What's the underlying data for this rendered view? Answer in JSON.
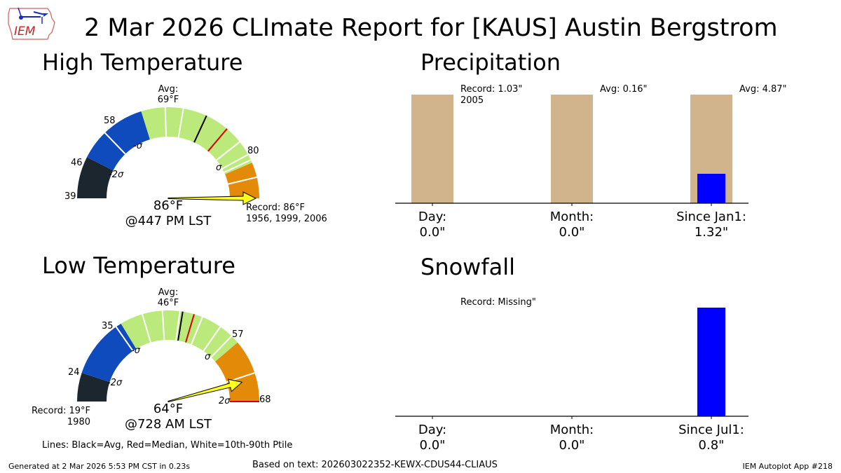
{
  "header": {
    "title": "2 Mar 2026 CLImate Report for [KAUS] Austin Bergstrom",
    "logo_text": "IEM"
  },
  "panels": {
    "high": {
      "title": "High Temperature"
    },
    "low": {
      "title": "Low Temperature"
    },
    "precip": {
      "title": "Precipitation"
    },
    "snow": {
      "title": "Snowfall"
    }
  },
  "legend_note": "Lines: Black=Avg, Red=Median, White=10th-90th Ptile",
  "footer": {
    "generated": "Generated at 2 Mar 2026 5:53 PM CST in 0.23s",
    "based_on": "Based on text: 202603022352-KEWX-CDUS44-CLIAUS",
    "app": "IEM Autoplot App #218"
  },
  "colors": {
    "below_2sigma": "#1c262e",
    "below_sigma": "#0f4bbd",
    "normal": "#bbe97c",
    "above_sigma": "#e48a09",
    "arrow": "#ffff1a",
    "precip_avg_bar": "#d2b48c",
    "observed_bar": "#0000ff",
    "avg_line": "#000000",
    "median_line": "#d40000",
    "ptile_line": "#ffffff"
  },
  "chart_data": [
    {
      "type": "gauge",
      "title": "High Temperature",
      "min": 39,
      "max": 86,
      "tick_labels": [
        "39",
        "46",
        "58",
        "80"
      ],
      "band_edges": [
        39,
        46,
        58,
        80,
        86
      ],
      "band_labels": [
        "-2σ",
        "-σ",
        "σ"
      ],
      "avg": 69,
      "avg_label": [
        "Avg:",
        "69°F"
      ],
      "median": 73,
      "ptile_lines": [
        51,
        62,
        65,
        76,
        78.5,
        79.5,
        82.5
      ],
      "observed": 86,
      "observed_label": "86°F",
      "observed_time": "@447 PM LST",
      "record_label": [
        "Record: 86°F",
        "1956, 1999, 2006"
      ]
    },
    {
      "type": "gauge",
      "title": "Low Temperature",
      "min": 19,
      "max": 68,
      "tick_labels": [
        "24",
        "35",
        "57",
        "68"
      ],
      "band_edges": [
        19,
        24,
        35,
        57,
        68
      ],
      "band_labels": [
        "-2σ",
        "-σ",
        "σ",
        "2σ"
      ],
      "avg": 46,
      "avg_label": [
        "Avg:",
        "46°F"
      ],
      "median": 48,
      "ptile_lines": [
        34,
        39,
        42.5,
        45.5,
        49.5,
        53,
        55.5,
        63
      ],
      "observed": 64,
      "observed_label": "64°F",
      "observed_time": "@728 AM LST",
      "record_label": [
        "Record: 19°F",
        "1980"
      ]
    },
    {
      "type": "bar",
      "title": "Precipitation",
      "categories": [
        "Day:",
        "Month:",
        "Since Jan1:"
      ],
      "category_values": [
        "0.0\"",
        "0.0\"",
        "1.32\""
      ],
      "series": [
        {
          "name": "Reference (record/avg, normalized)",
          "values": [
            1.0,
            1.0,
            1.0
          ]
        },
        {
          "name": "Observed (fraction of reference)",
          "values": [
            0.0,
            0.0,
            0.271
          ]
        }
      ],
      "annotations": [
        [
          "Record: 1.03\"",
          "2005"
        ],
        [
          "Avg: 0.16\""
        ],
        [
          "Avg: 4.87\""
        ]
      ],
      "observed_inches": [
        0.0,
        0.0,
        1.32
      ]
    },
    {
      "type": "bar",
      "title": "Snowfall",
      "categories": [
        "Day:",
        "Month:",
        "Since Jul1:"
      ],
      "category_values": [
        "0.0\"",
        "0.0\"",
        "0.8\""
      ],
      "series": [
        {
          "name": "Observed (normalized)",
          "values": [
            0.0,
            0.0,
            1.0
          ]
        }
      ],
      "annotations": [
        [
          "Record: Missing\""
        ],
        [],
        []
      ],
      "observed_inches": [
        0.0,
        0.0,
        0.8
      ]
    }
  ]
}
